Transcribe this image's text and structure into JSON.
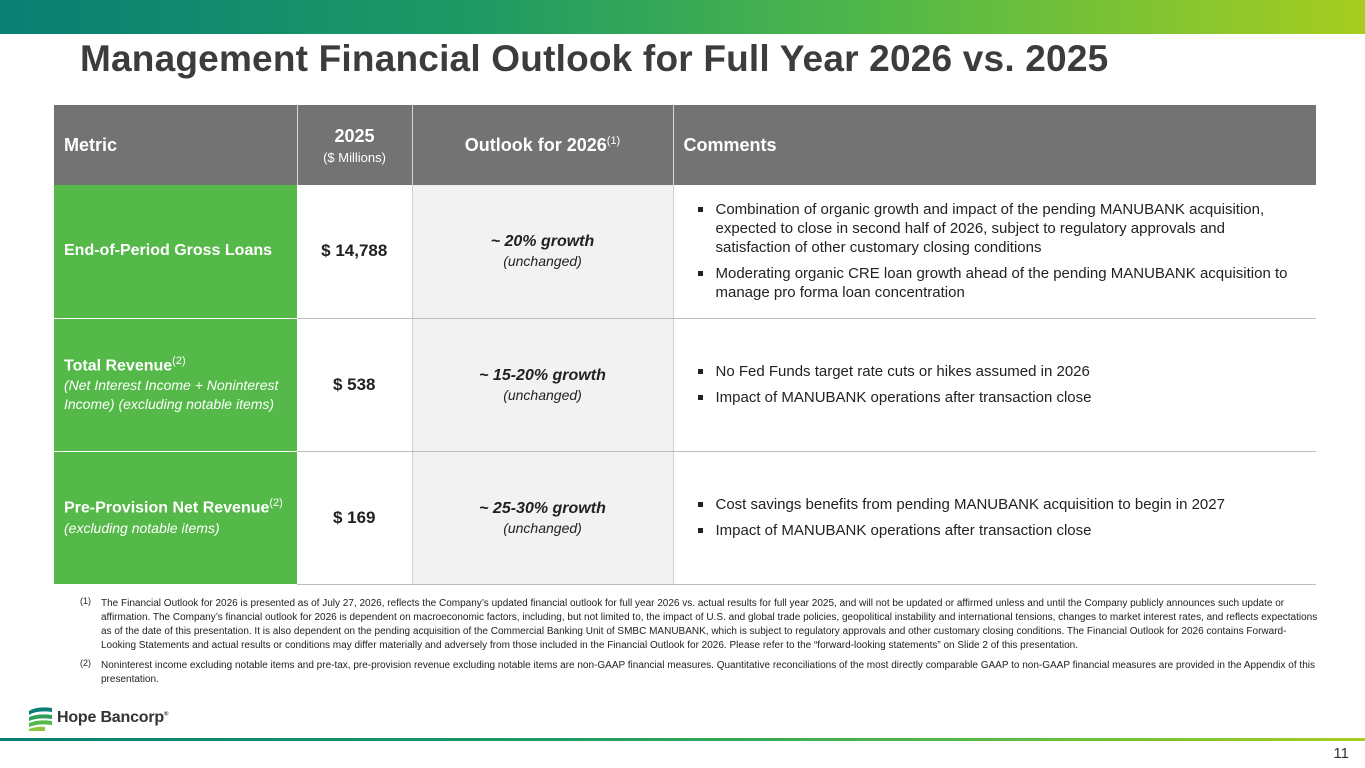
{
  "slide": {
    "title": "Management Financial Outlook for Full Year 2026 vs. 2025",
    "page_number": "11"
  },
  "table": {
    "headers": {
      "metric": "Metric",
      "year": "2025",
      "year_unit": "($ Millions)",
      "outlook": "Outlook for 2026",
      "outlook_note": "(1)",
      "comments": "Comments"
    },
    "rows": [
      {
        "metric": "End-of-Period Gross Loans",
        "metric_note": "",
        "metric_sub": "",
        "value": "$ 14,788",
        "outlook": "~ 20% growth",
        "outlook_status": "(unchanged)",
        "comments": [
          "Combination of organic growth and impact of the pending MANUBANK acquisition, expected to close in second half of 2026, subject to regulatory approvals and satisfaction of other customary closing conditions",
          "Moderating organic CRE loan growth ahead of the pending MANUBANK acquisition to manage pro forma loan concentration"
        ]
      },
      {
        "metric": "Total Revenue",
        "metric_note": "(2)",
        "metric_sub": "(Net Interest Income + Noninterest Income) (excluding notable items)",
        "value": "$ 538",
        "outlook": "~ 15-20% growth",
        "outlook_status": "(unchanged)",
        "comments": [
          "No Fed Funds target rate cuts or hikes assumed in 2026",
          "Impact of MANUBANK operations after transaction close"
        ]
      },
      {
        "metric": "Pre-Provision Net Revenue",
        "metric_note": "(2)",
        "metric_sub": "(excluding notable items)",
        "value": "$ 169",
        "outlook": "~ 25-30% growth",
        "outlook_status": "(unchanged)",
        "comments": [
          "Cost savings benefits from pending MANUBANK acquisition to begin in 2027",
          "Impact of MANUBANK operations after transaction close"
        ]
      }
    ]
  },
  "footnotes": [
    {
      "mark": "(1)",
      "text": "The Financial Outlook for 2026 is presented as of July 27, 2026, reflects the Company’s updated financial outlook for full year 2026 vs. actual results for full year 2025, and will not be updated or affirmed unless and until the Company publicly announces such update or affirmation. The Company’s financial outlook for 2026 is dependent on macroeconomic factors, including, but not limited to, the impact of U.S. and global trade policies, geopolitical instability and international tensions, changes to market interest rates, and reflects expectations as of the date of this presentation. It is also dependent on the pending acquisition of the Commercial Banking Unit of SMBC MANUBANK, which is subject to regulatory approvals and other customary closing conditions. The Financial Outlook for 2026 contains Forward-Looking Statements and actual results or conditions may differ materially and adversely from those included in the Financial Outlook for 2026. Please refer to the “forward-looking statements” on Slide 2 of this presentation."
    },
    {
      "mark": "(2)",
      "text": "Noninterest income excluding notable items and pre-tax, pre-provision revenue excluding notable items are non-GAAP financial measures. Quantitative reconciliations of the most directly comparable GAAP to non-GAAP financial measures are provided in the Appendix of this presentation."
    }
  ],
  "logo": {
    "name": "Hope Bancorp",
    "mark": "®",
    "icon": "hope-bancorp-logo-icon"
  },
  "colors": {
    "header_gray": "#737373",
    "metric_green": "#54b948",
    "outlook_bg": "#f2f2f2",
    "title_text": "#3c3c3c"
  }
}
